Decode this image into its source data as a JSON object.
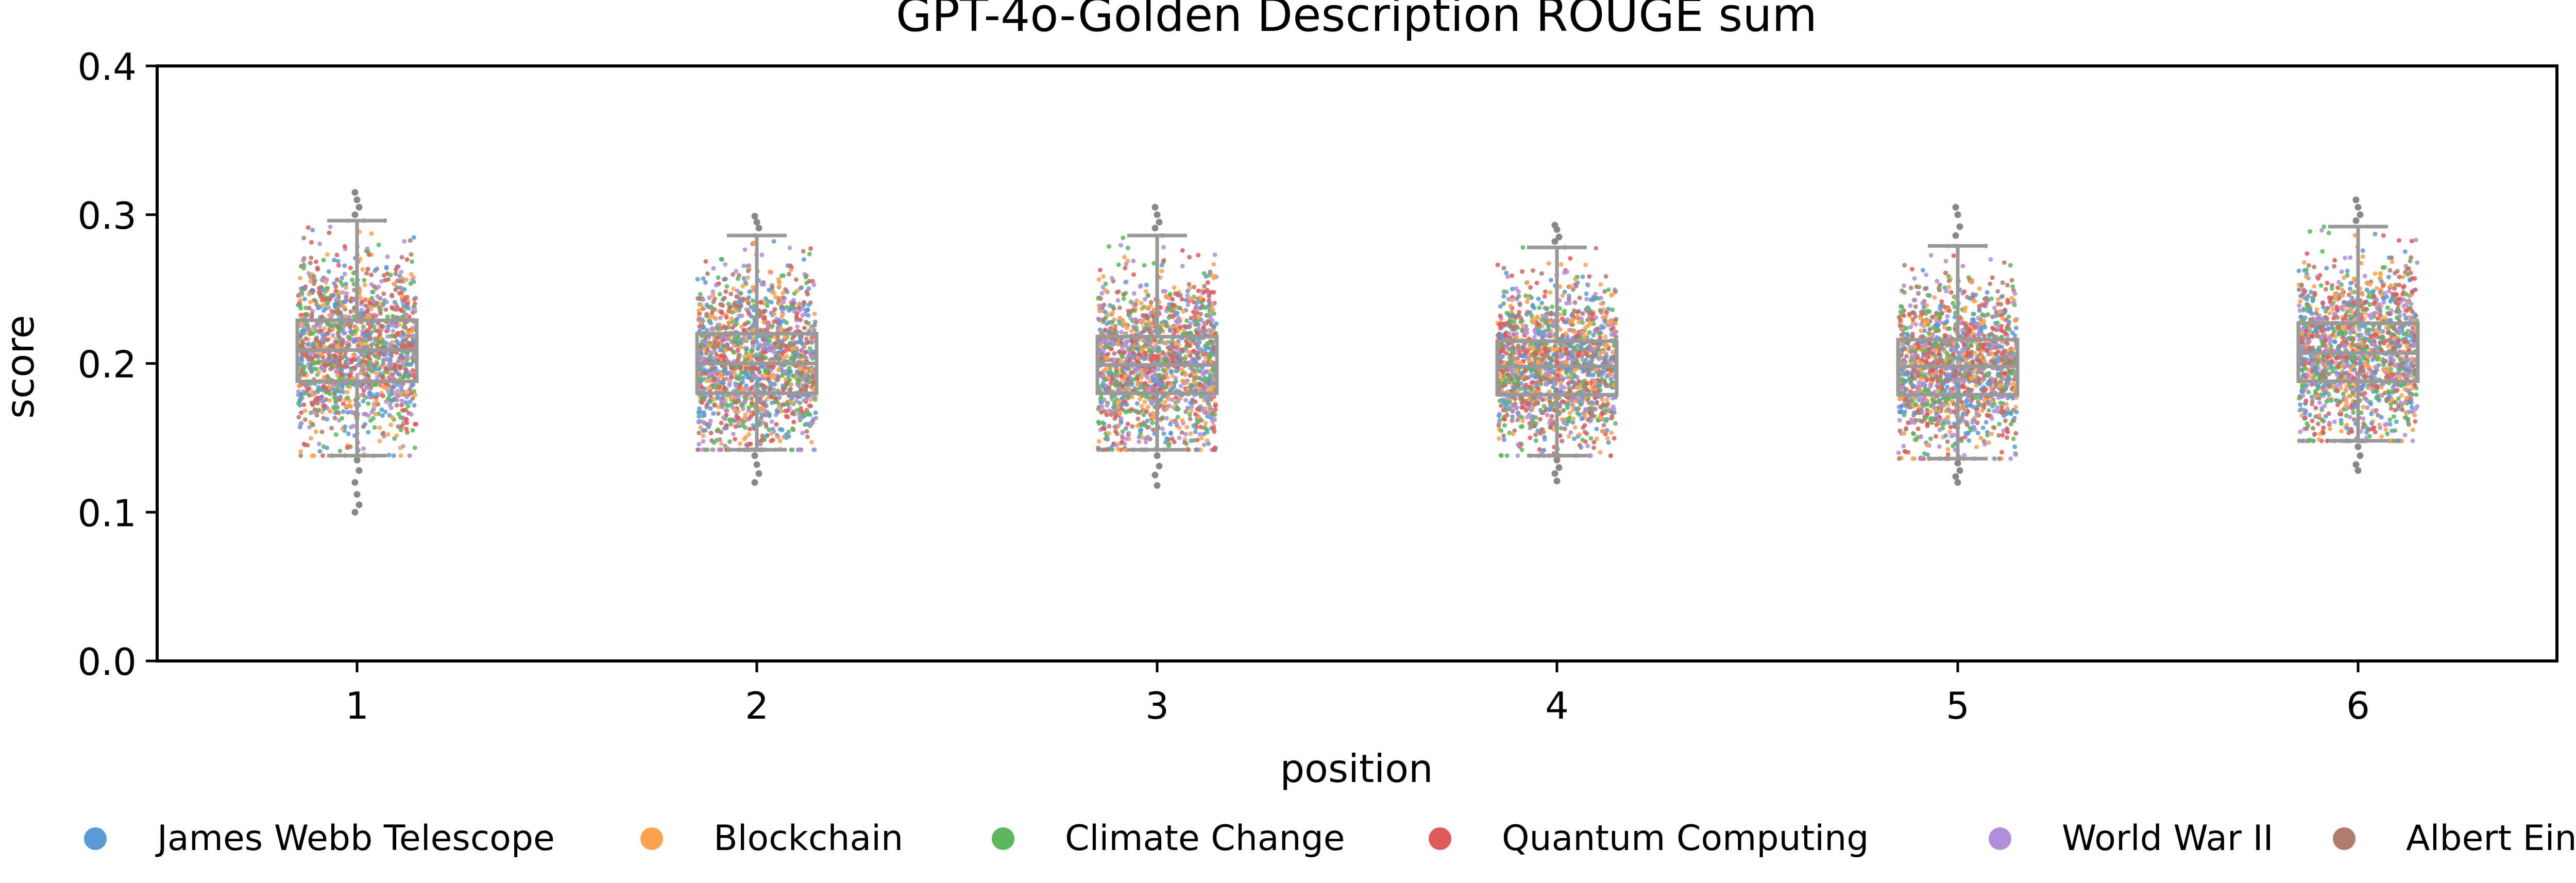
{
  "chart_data": {
    "type": "box-strip",
    "title": "GPT-4o-Golden Description ROUGE sum",
    "xlabel": "position",
    "ylabel": "score",
    "categories": [
      "1",
      "2",
      "3",
      "4",
      "5",
      "6"
    ],
    "ylim": [
      0.0,
      0.4
    ],
    "yticks": [
      "0.0",
      "0.1",
      "0.2",
      "0.3",
      "0.4"
    ],
    "grid": false,
    "legend_position": "bottom",
    "series": [
      {
        "name": "James Webb Telescope",
        "color": "#5b9bd5"
      },
      {
        "name": "Blockchain",
        "color": "#ffa24d"
      },
      {
        "name": "Climate Change",
        "color": "#5cb85c"
      },
      {
        "name": "Quantum Computing",
        "color": "#e05a5a"
      },
      {
        "name": "World War II",
        "color": "#b08fd8"
      },
      {
        "name": "Albert Einstein",
        "color": "#b07a6e"
      }
    ],
    "boxes": [
      {
        "position": "1",
        "whisker_low": 0.138,
        "q1": 0.188,
        "median": 0.209,
        "q3": 0.229,
        "whisker_high": 0.296
      },
      {
        "position": "2",
        "whisker_low": 0.142,
        "q1": 0.18,
        "median": 0.2,
        "q3": 0.22,
        "whisker_high": 0.286
      },
      {
        "position": "3",
        "whisker_low": 0.142,
        "q1": 0.18,
        "median": 0.199,
        "q3": 0.218,
        "whisker_high": 0.286
      },
      {
        "position": "4",
        "whisker_low": 0.138,
        "q1": 0.179,
        "median": 0.198,
        "q3": 0.215,
        "whisker_high": 0.278
      },
      {
        "position": "5",
        "whisker_low": 0.136,
        "q1": 0.179,
        "median": 0.198,
        "q3": 0.216,
        "whisker_high": 0.279
      },
      {
        "position": "6",
        "whisker_low": 0.148,
        "q1": 0.188,
        "median": 0.207,
        "q3": 0.227,
        "whisker_high": 0.292
      }
    ],
    "outliers": [
      {
        "position": "1",
        "values": [
          0.315,
          0.31,
          0.305,
          0.3,
          0.135,
          0.128,
          0.12,
          0.112,
          0.105,
          0.1
        ]
      },
      {
        "position": "2",
        "values": [
          0.299,
          0.295,
          0.291,
          0.138,
          0.132,
          0.126,
          0.12
        ]
      },
      {
        "position": "3",
        "values": [
          0.305,
          0.3,
          0.295,
          0.291,
          0.138,
          0.131,
          0.125,
          0.118
        ]
      },
      {
        "position": "4",
        "values": [
          0.293,
          0.29,
          0.285,
          0.282,
          0.135,
          0.13,
          0.126,
          0.121
        ]
      },
      {
        "position": "5",
        "values": [
          0.305,
          0.3,
          0.292,
          0.286,
          0.133,
          0.128,
          0.124,
          0.12
        ]
      },
      {
        "position": "6",
        "values": [
          0.31,
          0.305,
          0.3,
          0.296,
          0.144,
          0.138,
          0.132,
          0.128
        ]
      }
    ],
    "scatter_count_per_position": 1500,
    "box_color": "#999999",
    "outlier_color": "#888888"
  }
}
